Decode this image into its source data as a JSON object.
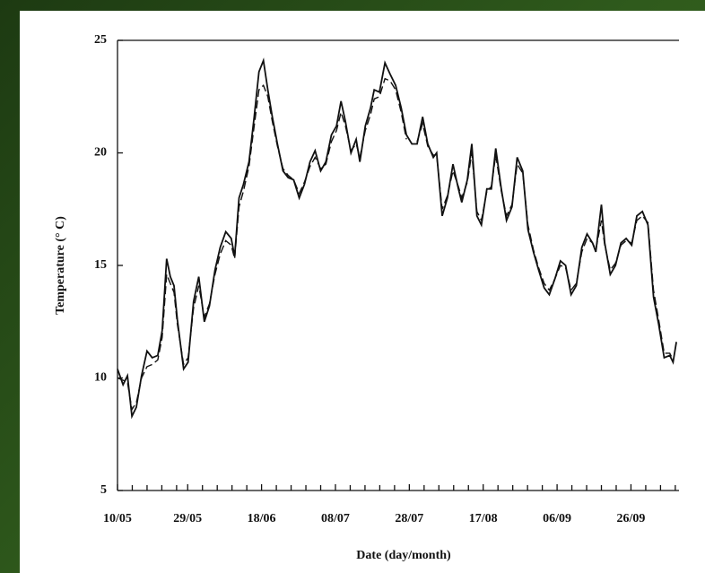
{
  "chart_data": {
    "type": "line",
    "xlabel": "Date (day/month)",
    "ylabel": "Temperature (° C)",
    "x": [
      0,
      1.5,
      2.7,
      3.9,
      5.1,
      6.5,
      8,
      9.4,
      10.9,
      12.1,
      13.3,
      14.3,
      15.3,
      16.2,
      17.9,
      19.1,
      20.6,
      22,
      23.5,
      24.9,
      26.4,
      27.8,
      29.3,
      30.8,
      31.7,
      32.9,
      34.1,
      35.6,
      37,
      38.3,
      39.5,
      40.7,
      41.9,
      43.3,
      44.8,
      46.2,
      47.7,
      49.2,
      50.6,
      52.1,
      53.5,
      55,
      56.4,
      57.9,
      59.3,
      60.5,
      61.7,
      63.2,
      64.6,
      65.6,
      67.1,
      68.5,
      69.5,
      70.9,
      72.4,
      73.8,
      75.3,
      76.8,
      78.2,
      79.7,
      81.1,
      82.6,
      84,
      85.5,
      86.4,
      87.9,
      89.3,
      90.8,
      92.3,
      93.2,
      94.7,
      95.9,
      97.3,
      98.5,
      100,
      101.2,
      102.4,
      103.9,
      105.3,
      106.8,
      108.2,
      109.7,
      111.1,
      112.6,
      114,
      115.5,
      116.9,
      118.4,
      119.9,
      121.3,
      122.8,
      124.2,
      125.7,
      127.1,
      128.6,
      129.5,
      131,
      131.9,
      133.4,
      134.8,
      136.3,
      137.7,
      139.2,
      140.6,
      142.1,
      143.6,
      145.1,
      146.5,
      148,
      149.5,
      150.4,
      151.3
    ],
    "series": [
      {
        "color": "#111111",
        "dash": false,
        "values": [
          10.4,
          9.7,
          10.1,
          8.3,
          8.7,
          10.1,
          11.2,
          10.9,
          11,
          12.1,
          15.3,
          14.5,
          14.1,
          12.6,
          10.4,
          10.7,
          13.4,
          14.5,
          12.5,
          13.2,
          14.8,
          15.8,
          16.5,
          16.2,
          15.4,
          18,
          18.6,
          19.6,
          21.6,
          23.6,
          24.1,
          22.8,
          21.6,
          20.4,
          19.2,
          18.9,
          18.8,
          18,
          18.6,
          19.6,
          20.1,
          19.2,
          19.6,
          20.8,
          21.2,
          22.3,
          21.4,
          20,
          20.6,
          19.6,
          21.2,
          22,
          22.8,
          22.7,
          24,
          23.5,
          23,
          22,
          20.8,
          20.4,
          20.4,
          21.6,
          20.4,
          19.8,
          20,
          17.2,
          18,
          19.5,
          18.4,
          17.8,
          18.8,
          20.4,
          17.2,
          16.8,
          18.4,
          18.4,
          20.2,
          18.4,
          17,
          17.6,
          19.8,
          19.2,
          16.6,
          15.6,
          14.8,
          14,
          13.7,
          14.4,
          15.2,
          15,
          13.7,
          14.1,
          15.8,
          16.4,
          16,
          15.6,
          17.7,
          16,
          14.6,
          15,
          16,
          16.2,
          15.9,
          17.2,
          17.4,
          16.8,
          13.6,
          12.4,
          10.9,
          11,
          10.7,
          11.6
        ]
      },
      {
        "color": "#111111",
        "dash": true,
        "values": [
          10,
          9.9,
          9.8,
          8.6,
          8.9,
          10,
          10.5,
          10.6,
          10.8,
          11.8,
          14.6,
          14.2,
          13.8,
          12.4,
          10.6,
          10.9,
          13.1,
          14.1,
          12.7,
          13.3,
          14.6,
          15.5,
          16.1,
          15.9,
          15.3,
          17.6,
          18.3,
          19.4,
          21.2,
          22.8,
          23,
          22.5,
          21.4,
          20.3,
          19.3,
          19,
          18.8,
          18.2,
          18.7,
          19.4,
          19.8,
          19.3,
          19.5,
          20.5,
          21,
          21.8,
          21.2,
          20.1,
          20.4,
          19.8,
          21,
          21.7,
          22.4,
          22.5,
          23.3,
          23.2,
          22.8,
          21.8,
          20.6,
          null,
          20.5,
          21.3,
          20.3,
          19.9,
          19.9,
          17.5,
          18.1,
          19.2,
          18.5,
          18,
          18.7,
          20,
          17.4,
          17,
          18.3,
          18.5,
          19.9,
          18.3,
          17.2,
          17.7,
          19.5,
          19.1,
          16.8,
          15.7,
          14.9,
          14.2,
          13.9,
          14.4,
          15,
          14.9,
          13.9,
          14.2,
          15.6,
          16.2,
          16,
          15.7,
          17,
          15.9,
          14.8,
          15.1,
          15.9,
          16.1,
          16,
          17,
          17.2,
          16.9,
          13.9,
          12.6,
          11.1,
          11.1,
          10.8,
          null
        ]
      }
    ],
    "xlim": [
      0,
      152
    ],
    "xticks": [
      {
        "value": 0,
        "label": "10/05"
      },
      {
        "value": 19,
        "label": "29/05"
      },
      {
        "value": 39,
        "label": "18/06"
      },
      {
        "value": 59,
        "label": "08/07"
      },
      {
        "value": 79,
        "label": "28/07"
      },
      {
        "value": 99,
        "label": "17/08"
      },
      {
        "value": 119,
        "label": "06/09"
      },
      {
        "value": 139,
        "label": "26/09"
      }
    ],
    "xminorticks": [
      4,
      8,
      12,
      16,
      23,
      27,
      31,
      35,
      43,
      47,
      51,
      55,
      63,
      67,
      71,
      75,
      83,
      87,
      91,
      95,
      103,
      107,
      111,
      115,
      123,
      127,
      131,
      135,
      143,
      147,
      151
    ],
    "ylim": [
      5,
      25
    ],
    "yticks": [
      5,
      10,
      15,
      20,
      25
    ]
  }
}
